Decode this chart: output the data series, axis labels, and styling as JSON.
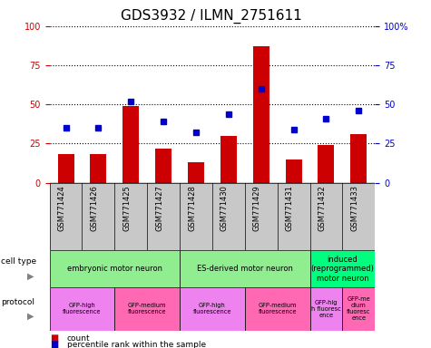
{
  "title": "GDS3932 / ILMN_2751611",
  "samples": [
    "GSM771424",
    "GSM771426",
    "GSM771425",
    "GSM771427",
    "GSM771428",
    "GSM771430",
    "GSM771429",
    "GSM771431",
    "GSM771432",
    "GSM771433"
  ],
  "counts": [
    18,
    18,
    49,
    22,
    13,
    30,
    87,
    15,
    24,
    31
  ],
  "percentiles": [
    35,
    35,
    52,
    39,
    32,
    44,
    60,
    34,
    41,
    46
  ],
  "ylim_left": [
    0,
    100
  ],
  "ylim_right": [
    0,
    100
  ],
  "cell_type_groups": [
    {
      "label": "embryonic motor neuron",
      "start": 0,
      "end": 3,
      "color": "#90EE90"
    },
    {
      "label": "ES-derived motor neuron",
      "start": 4,
      "end": 7,
      "color": "#90EE90"
    },
    {
      "label": "induced\n(reprogrammed)\nmotor neuron",
      "start": 8,
      "end": 9,
      "color": "#00FF7F"
    }
  ],
  "protocol_groups": [
    {
      "label": "GFP-high\nfluorescence",
      "start": 0,
      "end": 1,
      "color": "#EE82EE"
    },
    {
      "label": "GFP-medium\nfluorescence",
      "start": 2,
      "end": 3,
      "color": "#FF69B4"
    },
    {
      "label": "GFP-high\nfluorescence",
      "start": 4,
      "end": 5,
      "color": "#EE82EE"
    },
    {
      "label": "GFP-medium\nfluorescence",
      "start": 6,
      "end": 7,
      "color": "#FF69B4"
    },
    {
      "label": "GFP-hig\nh fluoresc\nence",
      "start": 8,
      "end": 8,
      "color": "#EE82EE"
    },
    {
      "label": "GFP-me\ndium\nfluoresc\nence",
      "start": 9,
      "end": 9,
      "color": "#FF69B4"
    }
  ],
  "bar_color": "#CC0000",
  "dot_color": "#0000CC",
  "left_tick_color": "#CC0000",
  "right_tick_color": "#0000CC",
  "title_fontsize": 11,
  "tick_fontsize": 7,
  "label_fontsize": 7,
  "sample_fontsize": 6,
  "annot_fontsize": 6
}
